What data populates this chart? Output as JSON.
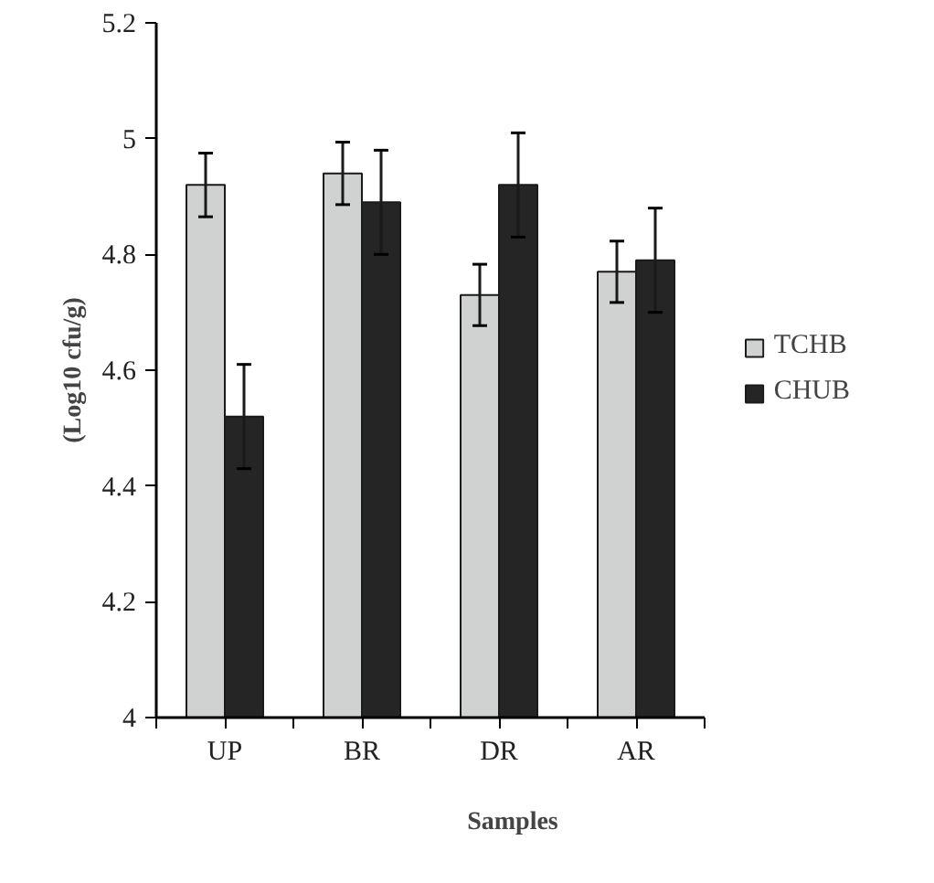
{
  "chart_data": {
    "type": "bar",
    "xlabel": "Samples",
    "ylabel": "(Log10 cfu/g)",
    "categories": [
      "UP",
      "BR",
      "DR",
      "AR"
    ],
    "series": [
      {
        "name": "TCHB",
        "color": "#d0d2d1",
        "values": [
          4.92,
          4.94,
          4.73,
          4.77
        ],
        "errors": [
          0.055,
          0.054,
          0.053,
          0.053
        ]
      },
      {
        "name": "CHUB",
        "color": "#252525",
        "values": [
          4.52,
          4.89,
          4.92,
          4.79
        ],
        "errors": [
          0.09,
          0.09,
          0.09,
          0.09
        ]
      }
    ],
    "ylim": [
      4,
      5.2
    ],
    "yticks": [
      4,
      4.2,
      4.4,
      4.6,
      4.8,
      5,
      5.2
    ],
    "legend": "right"
  }
}
